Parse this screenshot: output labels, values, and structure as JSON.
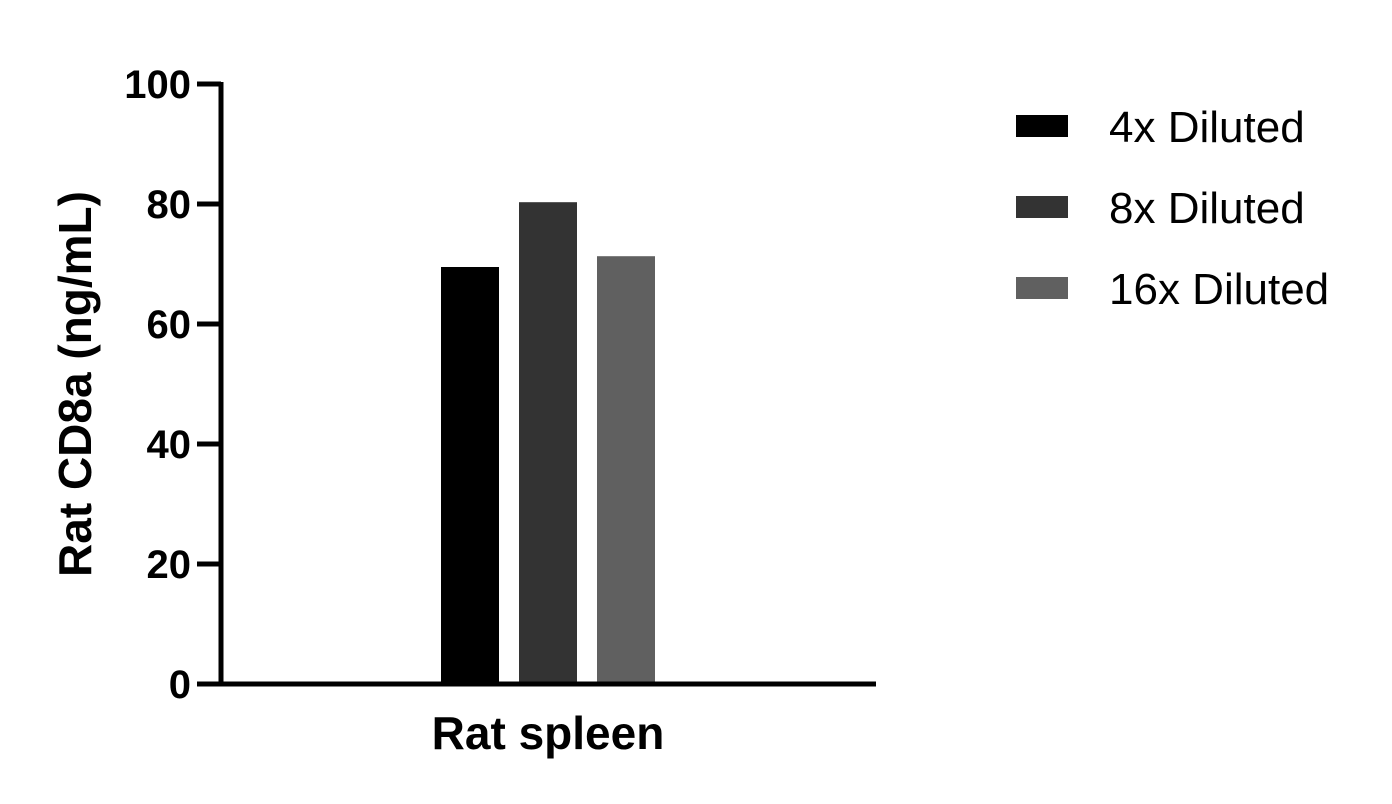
{
  "chart_data": {
    "type": "bar",
    "categories": [
      "Rat spleen"
    ],
    "series": [
      {
        "name": "4x Diluted",
        "values": [
          69.5
        ],
        "color": "#000000"
      },
      {
        "name": "8x Diluted",
        "values": [
          80.3
        ],
        "color": "#333333"
      },
      {
        "name": "16x Diluted",
        "values": [
          71.3
        ],
        "color": "#606060"
      }
    ],
    "xlabel": "Rat spleen",
    "ylabel": "Rat CD8a (ng/mL)",
    "ylim": [
      0,
      100
    ],
    "yticks": [
      "0",
      "20",
      "40",
      "60",
      "80",
      "100"
    ],
    "grid": false,
    "legend_position": "right"
  }
}
